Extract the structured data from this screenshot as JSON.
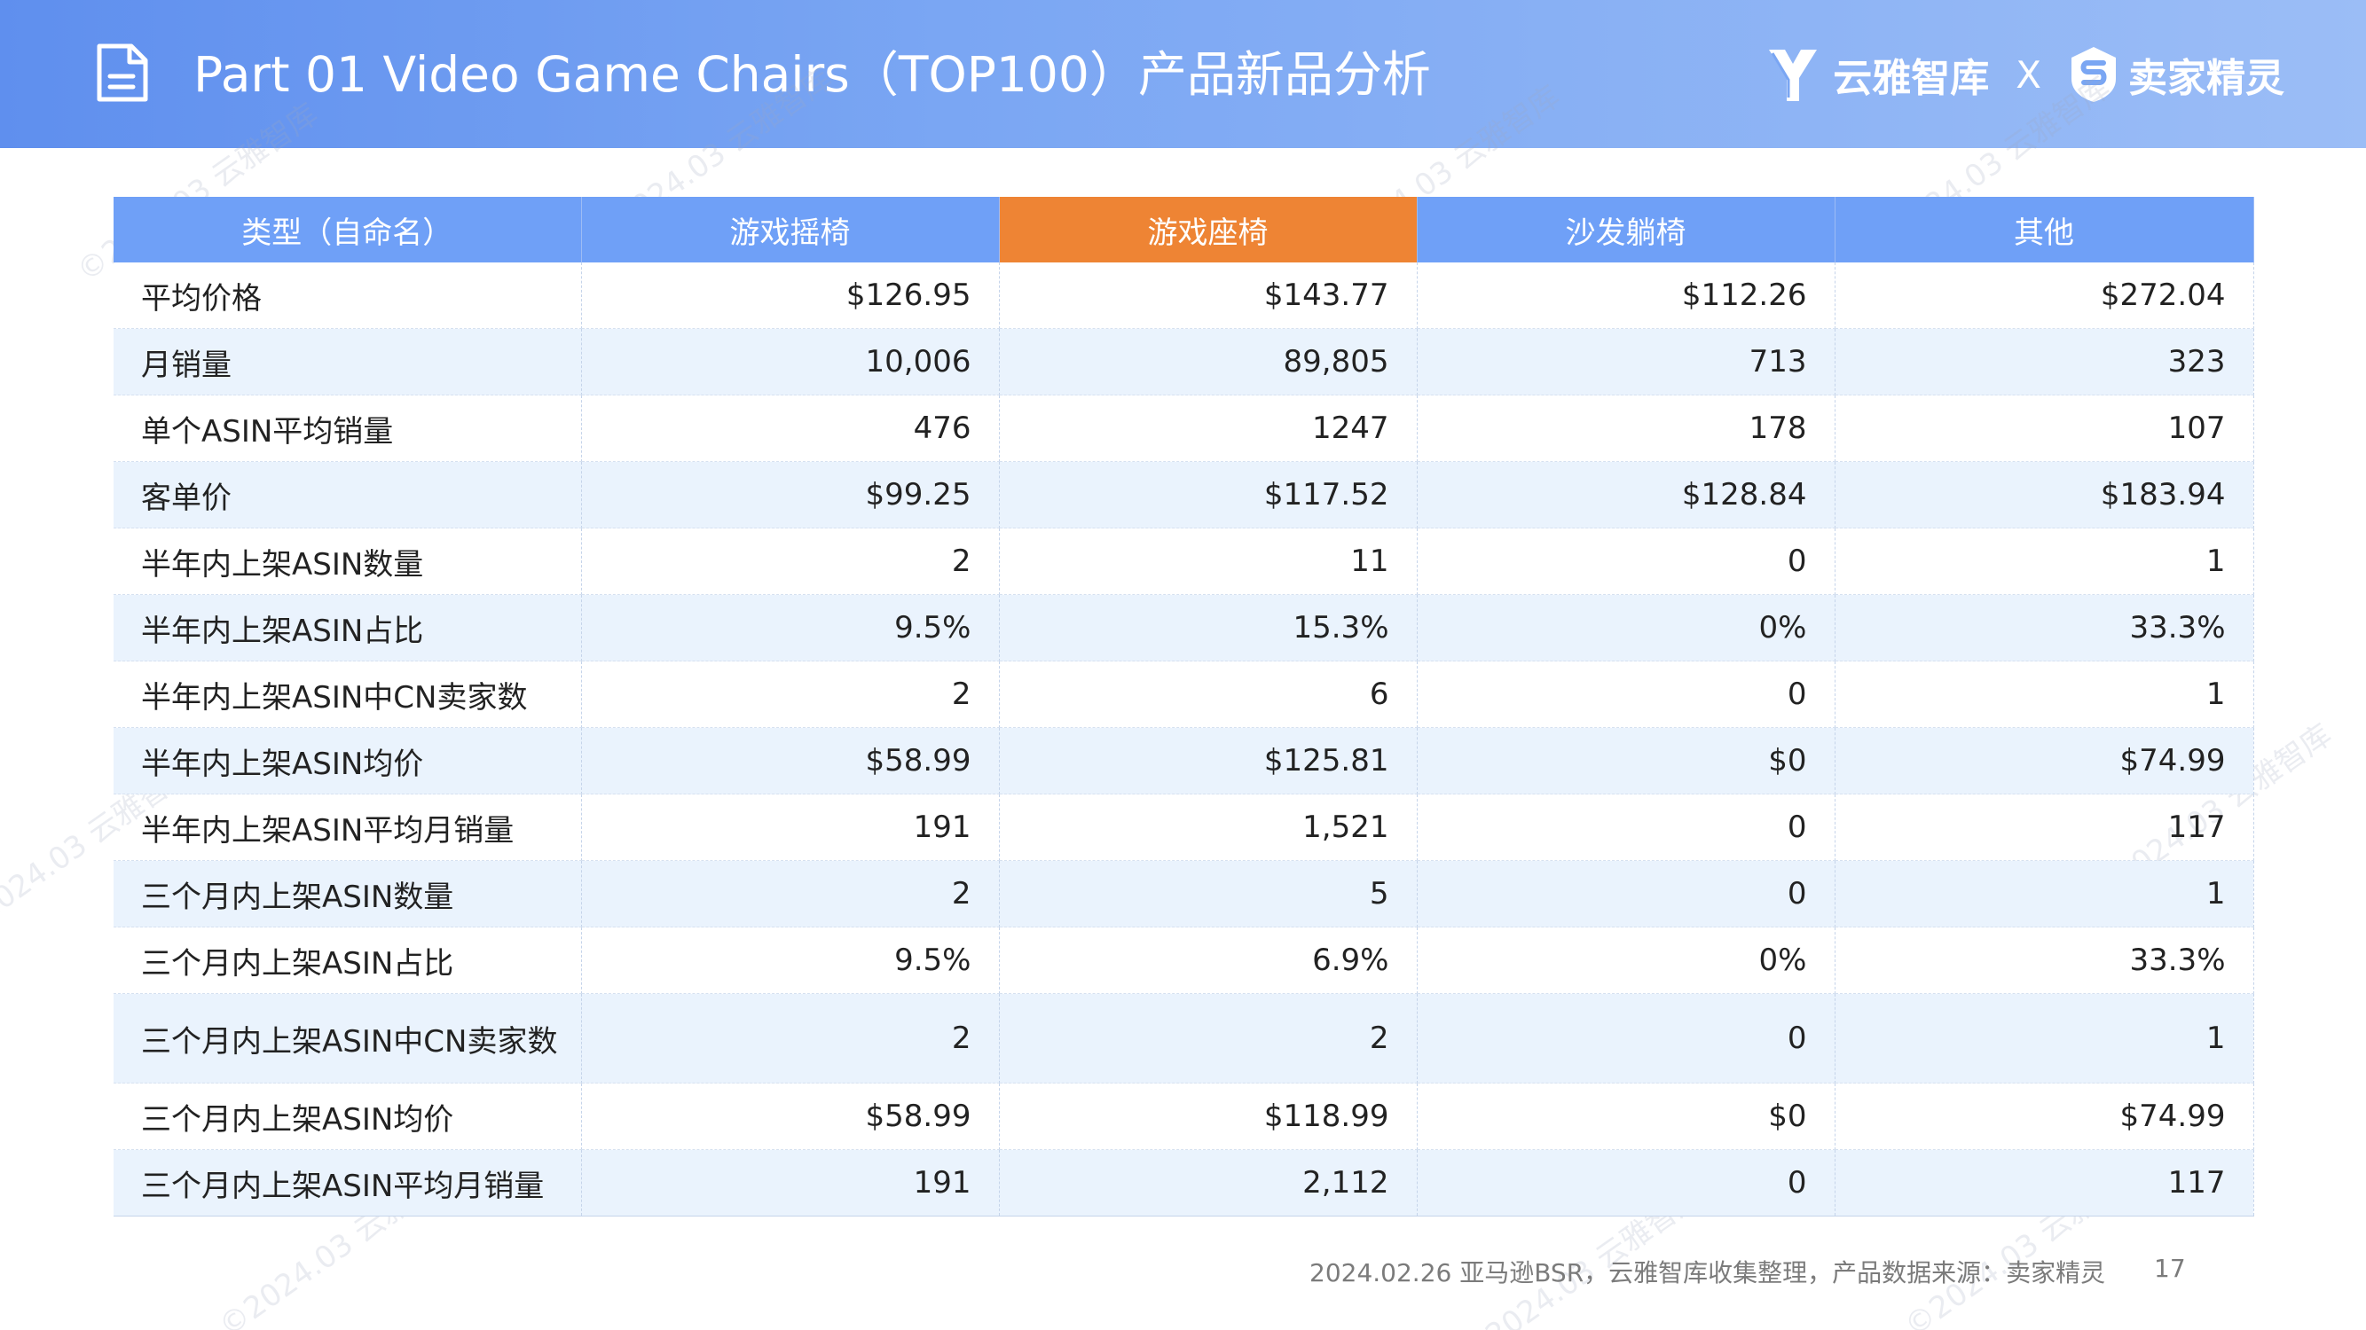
{
  "header": {
    "title": "Part 01 Video Game Chairs（TOP100）产品新品分析",
    "icon": "document-icon",
    "brand_left": "云雅智库",
    "brand_sep": "X",
    "brand_right": "卖家精灵"
  },
  "watermark_text": "©2024.03 云雅智库",
  "colors": {
    "header_bg": "#6f9ef2",
    "table_header": "#6fa0f7",
    "highlight_header": "#ee8434",
    "alt_row": "#eaf3fd"
  },
  "table": {
    "columns": [
      "类型（自命名）",
      "游戏摇椅",
      "游戏座椅",
      "沙发躺椅",
      "其他"
    ],
    "highlight_column": 2,
    "rows": [
      {
        "label": "平均价格",
        "values": [
          "$126.95",
          "$143.77",
          "$112.26",
          "$272.04"
        ]
      },
      {
        "label": "月销量",
        "values": [
          "10,006",
          "89,805",
          "713",
          "323"
        ]
      },
      {
        "label": "单个ASIN平均销量",
        "values": [
          "476",
          "1247",
          "178",
          "107"
        ]
      },
      {
        "label": "客单价",
        "values": [
          "$99.25",
          "$117.52",
          "$128.84",
          "$183.94"
        ]
      },
      {
        "label": "半年内上架ASIN数量",
        "values": [
          "2",
          "11",
          "0",
          "1"
        ]
      },
      {
        "label": "半年内上架ASIN占比",
        "values": [
          "9.5%",
          "15.3%",
          "0%",
          "33.3%"
        ]
      },
      {
        "label": "半年内上架ASIN中CN卖家数",
        "values": [
          "2",
          "6",
          "0",
          "1"
        ]
      },
      {
        "label": "半年内上架ASIN均价",
        "values": [
          "$58.99",
          "$125.81",
          "$0",
          "$74.99"
        ]
      },
      {
        "label": "半年内上架ASIN平均月销量",
        "values": [
          "191",
          "1,521",
          "0",
          "117"
        ]
      },
      {
        "label": "三个月内上架ASIN数量",
        "values": [
          "2",
          "5",
          "0",
          "1"
        ]
      },
      {
        "label": "三个月内上架ASIN占比",
        "values": [
          "9.5%",
          "6.9%",
          "0%",
          "33.3%"
        ]
      },
      {
        "label": "三个月内上架ASIN中CN卖家数",
        "values": [
          "2",
          "2",
          "0",
          "1"
        ]
      },
      {
        "label": "三个月内上架ASIN均价",
        "values": [
          "$58.99",
          "$118.99",
          "$0",
          "$74.99"
        ]
      },
      {
        "label": "三个月内上架ASIN平均月销量",
        "values": [
          "191",
          "2,112",
          "0",
          "117"
        ]
      }
    ]
  },
  "footer": {
    "source": "2024.02.26 亚马逊BSR，云雅智库收集整理，产品数据来源：卖家精灵",
    "page_number": "17"
  }
}
